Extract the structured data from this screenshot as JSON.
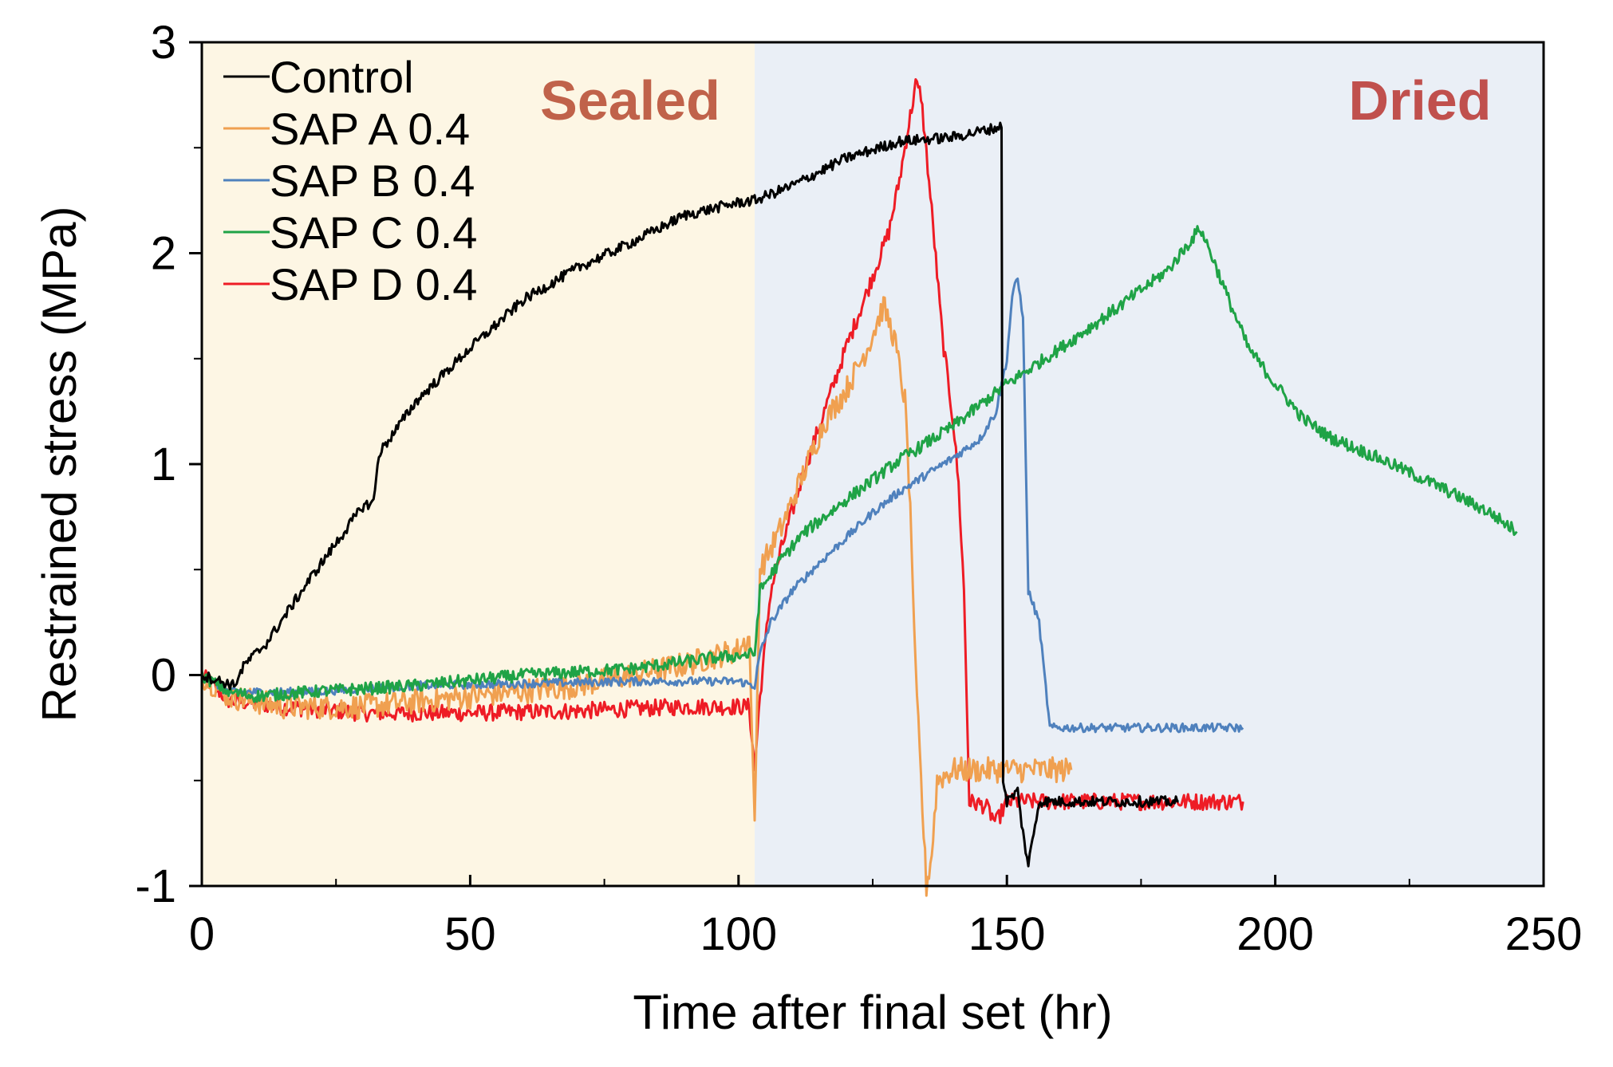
{
  "chart_data": {
    "type": "line",
    "title": "",
    "xlabel": "Time after final set (hr)",
    "ylabel": "Restrained stress (MPa)",
    "xlim": [
      0,
      250
    ],
    "ylim": [
      -1,
      3
    ],
    "x_ticks": [
      0,
      50,
      100,
      150,
      200,
      250
    ],
    "x_tick_labels": [
      "0",
      "50",
      "100",
      "150",
      "200",
      "250"
    ],
    "y_ticks": [
      -1,
      0,
      1,
      2,
      3
    ],
    "y_tick_labels": [
      "-1",
      "0",
      "1",
      "2",
      "3"
    ],
    "y_minor_ticks": [
      -0.5,
      0.5,
      1.5,
      2.5
    ],
    "x_minor_ticks": [
      25,
      75,
      125,
      175,
      225
    ],
    "grid": false,
    "legend_position": "top-left",
    "regions": [
      {
        "label": "Sealed",
        "x_start": 0,
        "x_end": 103,
        "color": "#FDF6E4",
        "label_color": "#C0624A"
      },
      {
        "label": "Dried",
        "x_start": 103,
        "x_end": 250,
        "color": "#EAEFF6",
        "label_color": "#C0504D"
      }
    ],
    "series": [
      {
        "name": "Control",
        "color": "#000000",
        "noise": 0.025,
        "points": [
          [
            0,
            0
          ],
          [
            6,
            -0.05
          ],
          [
            8,
            0.05
          ],
          [
            12,
            0.15
          ],
          [
            20,
            0.45
          ],
          [
            30,
            0.8
          ],
          [
            32,
            0.82
          ],
          [
            33,
            1.05
          ],
          [
            40,
            1.3
          ],
          [
            50,
            1.55
          ],
          [
            60,
            1.78
          ],
          [
            70,
            1.93
          ],
          [
            80,
            2.05
          ],
          [
            90,
            2.18
          ],
          [
            100,
            2.24
          ],
          [
            103,
            2.25
          ],
          [
            110,
            2.32
          ],
          [
            120,
            2.45
          ],
          [
            130,
            2.53
          ],
          [
            140,
            2.55
          ],
          [
            149,
            2.6
          ],
          [
            149.3,
            -0.5
          ],
          [
            150,
            -0.6
          ],
          [
            152,
            -0.55
          ],
          [
            153,
            -0.75
          ],
          [
            154,
            -0.9
          ],
          [
            155,
            -0.75
          ],
          [
            156,
            -0.6
          ],
          [
            170,
            -0.6
          ],
          [
            182,
            -0.6
          ]
        ]
      },
      {
        "name": "SAP A 0.4",
        "color": "#F0A050",
        "noise": 0.06,
        "points": [
          [
            0,
            0
          ],
          [
            5,
            -0.1
          ],
          [
            15,
            -0.15
          ],
          [
            30,
            -0.15
          ],
          [
            50,
            -0.1
          ],
          [
            70,
            -0.05
          ],
          [
            90,
            0.05
          ],
          [
            100,
            0.12
          ],
          [
            102,
            0.18
          ],
          [
            103,
            -0.7
          ],
          [
            104,
            0.5
          ],
          [
            108,
            0.7
          ],
          [
            112,
            0.95
          ],
          [
            116,
            1.2
          ],
          [
            120,
            1.35
          ],
          [
            124,
            1.55
          ],
          [
            127,
            1.75
          ],
          [
            129,
            1.6
          ],
          [
            131,
            1.3
          ],
          [
            132,
            0.8
          ],
          [
            133,
            0.0
          ],
          [
            134,
            -0.5
          ],
          [
            135,
            -1.0
          ],
          [
            136,
            -0.85
          ],
          [
            137,
            -0.5
          ],
          [
            140,
            -0.45
          ],
          [
            150,
            -0.45
          ],
          [
            162,
            -0.45
          ]
        ]
      },
      {
        "name": "SAP B 0.4",
        "color": "#4F81BD",
        "noise": 0.02,
        "points": [
          [
            0,
            0
          ],
          [
            5,
            -0.08
          ],
          [
            20,
            -0.08
          ],
          [
            40,
            -0.05
          ],
          [
            60,
            -0.04
          ],
          [
            80,
            -0.03
          ],
          [
            100,
            -0.03
          ],
          [
            103,
            -0.05
          ],
          [
            104,
            0.1
          ],
          [
            106,
            0.25
          ],
          [
            110,
            0.4
          ],
          [
            115,
            0.53
          ],
          [
            120,
            0.65
          ],
          [
            125,
            0.77
          ],
          [
            130,
            0.87
          ],
          [
            135,
            0.95
          ],
          [
            140,
            1.03
          ],
          [
            145,
            1.12
          ],
          [
            148,
            1.25
          ],
          [
            150,
            1.5
          ],
          [
            151,
            1.8
          ],
          [
            152,
            1.88
          ],
          [
            153,
            1.7
          ],
          [
            154,
            0.4
          ],
          [
            156,
            0.25
          ],
          [
            157,
            0.0
          ],
          [
            158,
            -0.25
          ],
          [
            165,
            -0.25
          ],
          [
            180,
            -0.25
          ],
          [
            194,
            -0.25
          ]
        ]
      },
      {
        "name": "SAP C 0.4",
        "color": "#1FA346",
        "noise": 0.03,
        "points": [
          [
            0,
            0
          ],
          [
            5,
            -0.08
          ],
          [
            10,
            -0.1
          ],
          [
            20,
            -0.08
          ],
          [
            40,
            -0.05
          ],
          [
            60,
            0.0
          ],
          [
            80,
            0.03
          ],
          [
            95,
            0.08
          ],
          [
            103,
            0.1
          ],
          [
            104,
            0.4
          ],
          [
            108,
            0.55
          ],
          [
            112,
            0.67
          ],
          [
            120,
            0.83
          ],
          [
            130,
            1.02
          ],
          [
            140,
            1.18
          ],
          [
            150,
            1.38
          ],
          [
            160,
            1.55
          ],
          [
            170,
            1.73
          ],
          [
            180,
            1.92
          ],
          [
            184,
            2.05
          ],
          [
            186,
            2.12
          ],
          [
            188,
            2.0
          ],
          [
            191,
            1.8
          ],
          [
            195,
            1.55
          ],
          [
            200,
            1.38
          ],
          [
            205,
            1.22
          ],
          [
            210,
            1.13
          ],
          [
            220,
            1.02
          ],
          [
            230,
            0.9
          ],
          [
            240,
            0.77
          ],
          [
            245,
            0.68
          ]
        ]
      },
      {
        "name": "SAP D 0.4",
        "color": "#EE1C25",
        "noise": 0.04,
        "points": [
          [
            0,
            0
          ],
          [
            5,
            -0.12
          ],
          [
            15,
            -0.15
          ],
          [
            30,
            -0.18
          ],
          [
            50,
            -0.18
          ],
          [
            70,
            -0.17
          ],
          [
            90,
            -0.15
          ],
          [
            102,
            -0.15
          ],
          [
            103,
            -0.45
          ],
          [
            104,
            -0.1
          ],
          [
            106,
            0.4
          ],
          [
            108,
            0.6
          ],
          [
            112,
            0.95
          ],
          [
            116,
            1.25
          ],
          [
            120,
            1.55
          ],
          [
            124,
            1.82
          ],
          [
            128,
            2.1
          ],
          [
            130,
            2.35
          ],
          [
            132,
            2.65
          ],
          [
            133,
            2.8
          ],
          [
            134,
            2.75
          ],
          [
            136,
            2.2
          ],
          [
            138,
            1.6
          ],
          [
            140,
            1.2
          ],
          [
            141,
            0.9
          ],
          [
            142,
            0.4
          ],
          [
            143,
            -0.6
          ],
          [
            146,
            -0.62
          ],
          [
            148,
            -0.7
          ],
          [
            150,
            -0.6
          ],
          [
            160,
            -0.6
          ],
          [
            180,
            -0.6
          ],
          [
            194,
            -0.6
          ]
        ]
      }
    ]
  }
}
